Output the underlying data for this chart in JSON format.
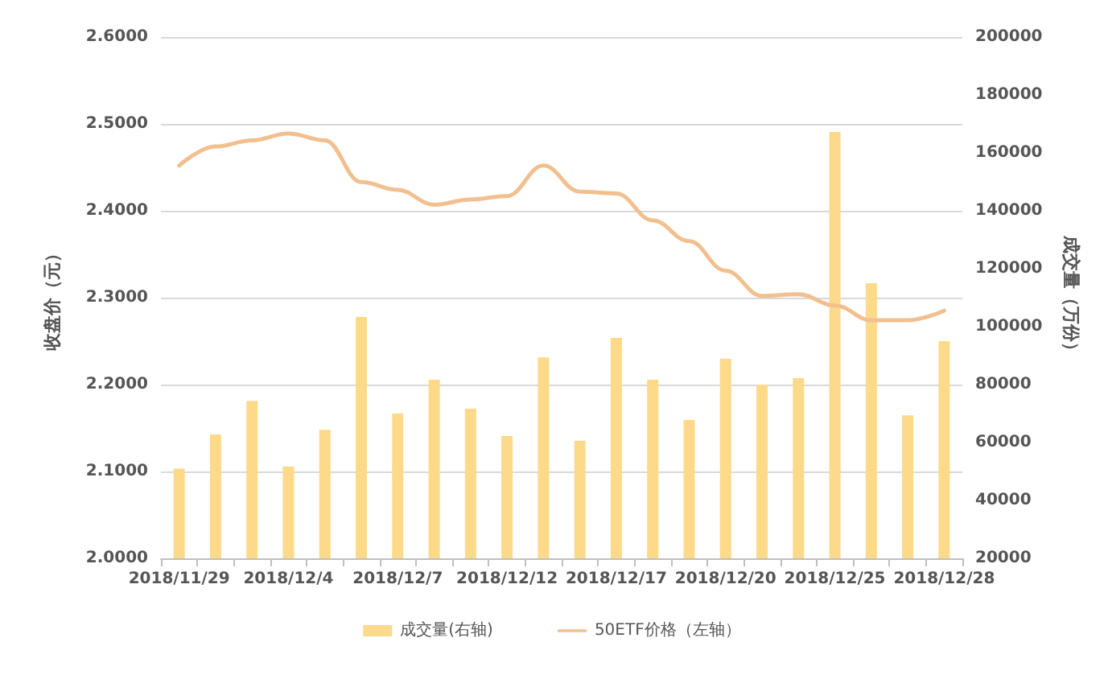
{
  "chart_data": {
    "type": "bar",
    "ylabel": "收盘价（元）",
    "y2label": "成交量（万份）",
    "categories": [
      "2018/11/29",
      null,
      null,
      "2018/12/4",
      null,
      null,
      "2018/12/7",
      null,
      null,
      "2018/12/12",
      null,
      null,
      "2018/12/17",
      null,
      null,
      "2018/12/20",
      null,
      null,
      "2018/12/25",
      null,
      null,
      "2018/12/28"
    ],
    "series": [
      {
        "name": "成交量(右轴)",
        "axis": "y2",
        "color": "#fdd98a",
        "values": [
          51000,
          62800,
          74400,
          51700,
          64400,
          103300,
          70000,
          81700,
          71700,
          62200,
          89400,
          60600,
          96100,
          81700,
          67800,
          88900,
          80000,
          82200,
          167200,
          115000,
          69400,
          95000
        ]
      },
      {
        "name": "50ETF价格（左轴）",
        "type": "line",
        "color": "#f2c08f",
        "values": [
          2.452,
          2.474,
          2.481,
          2.489,
          2.481,
          2.433,
          2.424,
          2.407,
          2.413,
          2.417,
          2.452,
          2.422,
          2.42,
          2.389,
          2.365,
          2.331,
          2.302,
          2.304,
          2.291,
          2.274,
          2.274,
          2.285
        ]
      }
    ],
    "ylim": [
      2.0,
      2.6
    ],
    "yticks": [
      {
        "value": 2.0,
        "label": "2.0000"
      },
      {
        "value": 2.1,
        "label": "2.1000"
      },
      {
        "value": 2.2,
        "label": "2.2000"
      },
      {
        "value": 2.3,
        "label": "2.3000"
      },
      {
        "value": 2.4,
        "label": "2.4000"
      },
      {
        "value": 2.5,
        "label": "2.5000"
      },
      {
        "value": 2.6,
        "label": "2.6000"
      }
    ],
    "y2lim": [
      20000,
      200000
    ],
    "y2ticks": [
      20000,
      40000,
      60000,
      80000,
      100000,
      120000,
      140000,
      160000,
      180000,
      200000
    ],
    "grid": "y",
    "legend": "bottom",
    "marker": "none"
  }
}
